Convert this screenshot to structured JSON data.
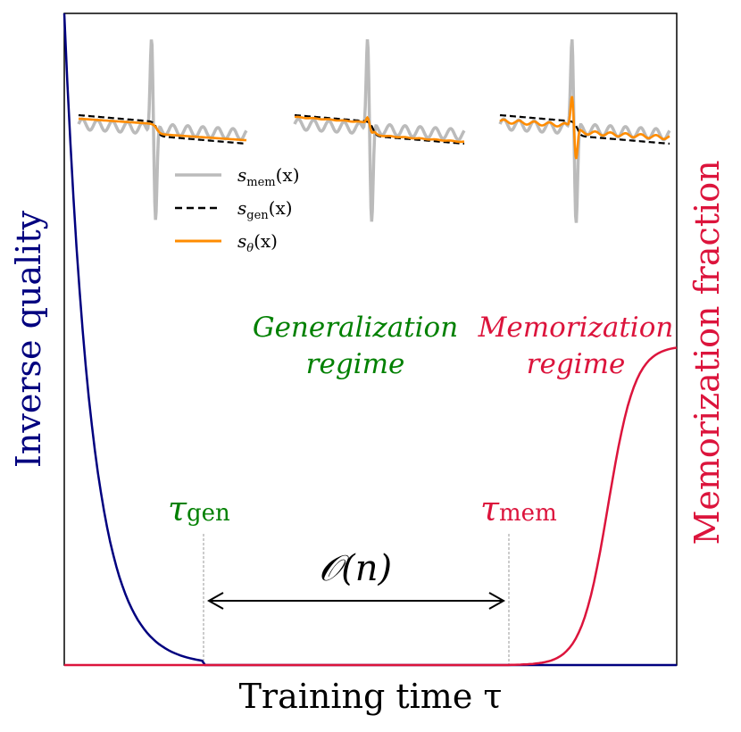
{
  "chart_data": {
    "type": "line",
    "xlabel": "Training time τ",
    "ylabel_left": "Inverse quality",
    "ylabel_right": "Memorization fraction",
    "grid": false,
    "series": [
      {
        "name": "Inverse quality",
        "color": "#00007f",
        "description_points": [
          [
            0,
            1.0
          ],
          [
            0.05,
            0.5
          ],
          [
            0.1,
            0.2
          ],
          [
            0.15,
            0.06
          ],
          [
            0.2,
            0.015
          ],
          [
            0.228,
            0.0
          ],
          [
            1.0,
            0.0
          ]
        ]
      },
      {
        "name": "Memorization fraction",
        "color": "#dc143c",
        "description_points": [
          [
            0.0,
            0.0
          ],
          [
            0.73,
            0.0
          ],
          [
            0.8,
            0.02
          ],
          [
            0.85,
            0.08
          ],
          [
            0.9,
            0.28
          ],
          [
            0.93,
            0.43
          ],
          [
            0.96,
            0.48
          ],
          [
            1.0,
            0.49
          ]
        ]
      }
    ],
    "annotations": {
      "tau_gen": {
        "label": "τ",
        "subscript": "gen",
        "color": "#008000",
        "x": 0.228
      },
      "tau_mem": {
        "label": "τ",
        "subscript": "mem",
        "color": "#dc143c",
        "x": 0.73
      },
      "interval": "𝒪(n)",
      "gen_regime": [
        "Generalization",
        "regime"
      ],
      "mem_regime": [
        "Memorization",
        "regime"
      ],
      "gen_color": "#008000",
      "mem_color": "#dc143c"
    },
    "inset_legend": [
      {
        "label": "s",
        "sub": "mem",
        "arg": "(x)",
        "color": "#bbbbbb",
        "style": "solid"
      },
      {
        "label": "s",
        "sub": "gen",
        "arg": "(x)",
        "color": "#000000",
        "style": "dashed"
      },
      {
        "label": "s",
        "sub": "θ",
        "arg": "(x)",
        "color": "#ff8c00",
        "style": "solid"
      }
    ],
    "inset_colors": {
      "mem": "#bbbbbb",
      "gen": "#000000",
      "theta": "#ff8c00"
    }
  }
}
